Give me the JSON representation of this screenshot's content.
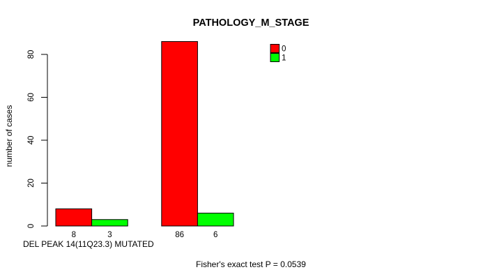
{
  "window": {
    "background": "#ffffff"
  },
  "chart_data": {
    "type": "bar",
    "title": "PATHOLOGY_M_STAGE",
    "xlabel": "DEL PEAK 14(11Q23.3) MUTATED",
    "ylabel": "number of cases",
    "yticks": [
      0,
      20,
      40,
      60,
      80
    ],
    "ylim": [
      0,
      86
    ],
    "grid": false,
    "legend_position": "top-right",
    "series": [
      {
        "name": "0",
        "color": "#ff0000",
        "values": [
          8,
          86
        ]
      },
      {
        "name": "1",
        "color": "#00ff00",
        "values": [
          3,
          6
        ]
      }
    ],
    "bar_value_labels": [
      [
        "8",
        "86"
      ],
      [
        "3",
        "6"
      ]
    ],
    "annotation": "Fisher's exact test P = 0.0539",
    "axis_color": "#000000",
    "text_color": "#000000"
  }
}
